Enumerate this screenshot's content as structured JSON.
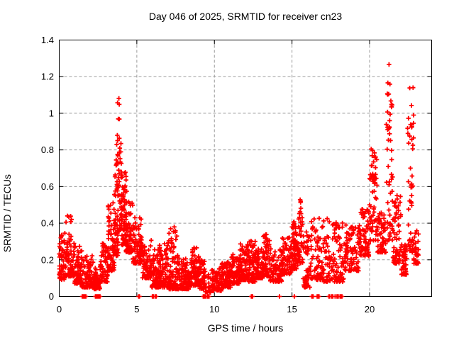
{
  "chart_data": {
    "type": "scatter",
    "title": "Day 046 of 2025, SRMTID for receiver cn23",
    "xlabel": "GPS time / hours",
    "ylabel": "SRMTID / TECUs",
    "xlim": [
      0,
      24
    ],
    "ylim": [
      0,
      1.4
    ],
    "xticks": [
      0,
      5,
      10,
      15,
      20
    ],
    "xtick_labels": [
      "0",
      "5",
      "10",
      "15",
      "20"
    ],
    "yticks": [
      0,
      0.2,
      0.4,
      0.6,
      0.8,
      1,
      1.2,
      1.4
    ],
    "ytick_labels": [
      "0",
      "0.2",
      "0.4",
      "0.6",
      "0.8",
      "1",
      "1.2",
      "1.4"
    ],
    "grid": true,
    "legend": false,
    "marker": {
      "shape": "plus",
      "color": "#ff0000",
      "size": 7
    },
    "grid_color": "#9b9b9b",
    "axis_color": "#000000",
    "background_color": "#ffffff",
    "series_name": "SRMTID",
    "seed": 20250215,
    "point_bands": [
      [
        0.0,
        0.35,
        0.09,
        0.34,
        45,
        1.8
      ],
      [
        0.35,
        0.95,
        0.11,
        0.45,
        75,
        2.0
      ],
      [
        0.95,
        1.45,
        0.07,
        0.28,
        65,
        2.0
      ],
      [
        1.45,
        2.15,
        0.05,
        0.23,
        70,
        2.0
      ],
      [
        2.15,
        2.65,
        0.04,
        0.19,
        55,
        1.8
      ],
      [
        2.65,
        3.15,
        0.08,
        0.3,
        60,
        1.8
      ],
      [
        3.15,
        3.55,
        0.14,
        0.52,
        70,
        1.9
      ],
      [
        3.55,
        3.8,
        0.22,
        0.78,
        55,
        1.6
      ],
      [
        3.7,
        4.05,
        0.35,
        1.09,
        55,
        1.5
      ],
      [
        4.0,
        4.35,
        0.28,
        0.68,
        60,
        1.7
      ],
      [
        4.3,
        4.75,
        0.24,
        0.52,
        70,
        1.9
      ],
      [
        4.75,
        5.35,
        0.18,
        0.43,
        80,
        1.9
      ],
      [
        5.35,
        5.95,
        0.1,
        0.33,
        70,
        2.0
      ],
      [
        5.95,
        6.35,
        0.05,
        0.26,
        50,
        1.9
      ],
      [
        6.35,
        7.05,
        0.05,
        0.3,
        95,
        2.1
      ],
      [
        7.05,
        7.65,
        0.04,
        0.38,
        95,
        2.2
      ],
      [
        7.65,
        8.35,
        0.04,
        0.21,
        95,
        1.9
      ],
      [
        8.35,
        9.05,
        0.06,
        0.27,
        90,
        1.9
      ],
      [
        9.05,
        9.4,
        0.04,
        0.2,
        45,
        1.9
      ],
      [
        9.4,
        9.8,
        0.02,
        0.12,
        18,
        1.6
      ],
      [
        9.8,
        10.45,
        0.03,
        0.16,
        75,
        1.8
      ],
      [
        10.45,
        11.05,
        0.05,
        0.19,
        85,
        1.8
      ],
      [
        11.05,
        11.65,
        0.07,
        0.23,
        85,
        1.8
      ],
      [
        11.65,
        12.15,
        0.09,
        0.29,
        80,
        1.9
      ],
      [
        12.15,
        12.65,
        0.08,
        0.31,
        70,
        1.9
      ],
      [
        12.65,
        13.15,
        0.1,
        0.26,
        70,
        1.9
      ],
      [
        13.15,
        13.55,
        0.11,
        0.34,
        60,
        1.8
      ],
      [
        13.55,
        14.35,
        0.08,
        0.26,
        85,
        1.9
      ],
      [
        14.35,
        14.95,
        0.12,
        0.33,
        70,
        1.8
      ],
      [
        14.95,
        15.4,
        0.15,
        0.43,
        60,
        1.7
      ],
      [
        15.4,
        15.7,
        0.18,
        0.53,
        40,
        1.5
      ],
      [
        15.7,
        16.15,
        0.05,
        0.36,
        50,
        1.6
      ],
      [
        16.15,
        17.05,
        0.09,
        0.43,
        85,
        1.9
      ],
      [
        17.05,
        18.35,
        0.08,
        0.43,
        115,
        2.0
      ],
      [
        18.35,
        19.35,
        0.14,
        0.39,
        95,
        1.9
      ],
      [
        19.35,
        20.0,
        0.22,
        0.48,
        70,
        1.8
      ],
      [
        20.0,
        20.5,
        0.3,
        0.81,
        60,
        1.2
      ],
      [
        20.5,
        21.05,
        0.24,
        0.46,
        60,
        1.8
      ],
      [
        21.05,
        21.5,
        0.3,
        1.29,
        55,
        1.3
      ],
      [
        21.5,
        22.05,
        0.18,
        0.56,
        65,
        1.8
      ],
      [
        22.05,
        22.4,
        0.12,
        0.3,
        40,
        1.7
      ],
      [
        22.4,
        22.85,
        0.24,
        1.17,
        50,
        1.3
      ],
      [
        22.85,
        23.15,
        0.18,
        0.36,
        28,
        1.7
      ]
    ],
    "zero_points": [
      1.48,
      1.53,
      1.58,
      1.62,
      1.67,
      1.72,
      2.33,
      2.36,
      2.39,
      2.42,
      2.45,
      2.48,
      2.51,
      2.54,
      2.57,
      2.6,
      2.63,
      5.12,
      5.17,
      6.0,
      6.04,
      6.08,
      6.2,
      6.25,
      9.28,
      9.32,
      9.36,
      9.4,
      9.44,
      9.55,
      9.6,
      9.65,
      12.38,
      12.42,
      12.46,
      14.2,
      15.15,
      16.28,
      16.32,
      16.36,
      16.62,
      16.66,
      16.7,
      16.74,
      17.38,
      17.42,
      17.55,
      17.59,
      17.63,
      17.78,
      17.9,
      17.94,
      17.98,
      18.1,
      18.14,
      18.18,
      18.22
    ]
  }
}
